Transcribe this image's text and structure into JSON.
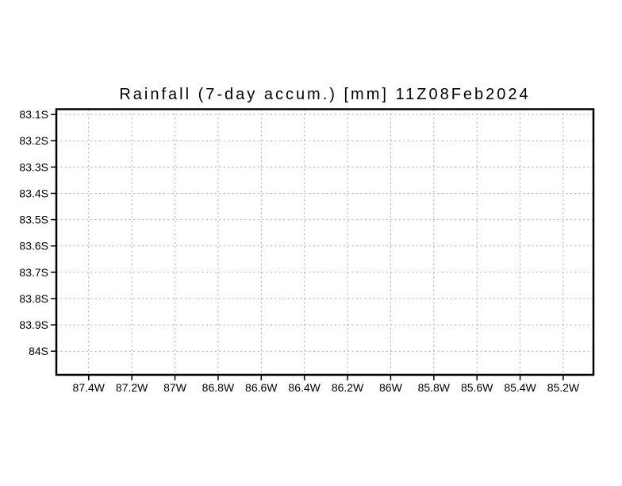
{
  "chart_data": {
    "type": "map-frame",
    "title": "Rainfall (7-day accum.) [mm] 11Z08Feb2024",
    "variable": "Rainfall (7-day accum.)",
    "units": "mm",
    "valid_time": "11Z08Feb2024",
    "x_axis": {
      "kind": "longitude",
      "tick_labels": [
        "87.4W",
        "87.2W",
        "87W",
        "86.8W",
        "86.6W",
        "86.4W",
        "86.2W",
        "86W",
        "85.8W",
        "85.6W",
        "85.4W",
        "85.2W"
      ],
      "tick_values": [
        -87.4,
        -87.2,
        -87.0,
        -86.8,
        -86.6,
        -86.4,
        -86.2,
        -86.0,
        -85.8,
        -85.6,
        -85.4,
        -85.2
      ],
      "range": [
        -87.55,
        -85.06
      ]
    },
    "y_axis": {
      "kind": "latitude",
      "tick_labels": [
        "83.1S",
        "83.2S",
        "83.3S",
        "83.4S",
        "83.5S",
        "83.6S",
        "83.7S",
        "83.8S",
        "83.9S",
        "84S"
      ],
      "tick_values": [
        -83.1,
        -83.2,
        -83.3,
        -83.4,
        -83.5,
        -83.6,
        -83.7,
        -83.8,
        -83.9,
        -84.0
      ],
      "range": [
        -84.09,
        -83.08
      ]
    },
    "grid": {
      "visible": true,
      "style": "dotted",
      "color": "#a9a9a9"
    },
    "series": [],
    "data_plotted": false
  },
  "colors": {
    "background": "#ffffff",
    "frame": "#000000",
    "text": "#000000",
    "grid": "#a9a9a9"
  }
}
